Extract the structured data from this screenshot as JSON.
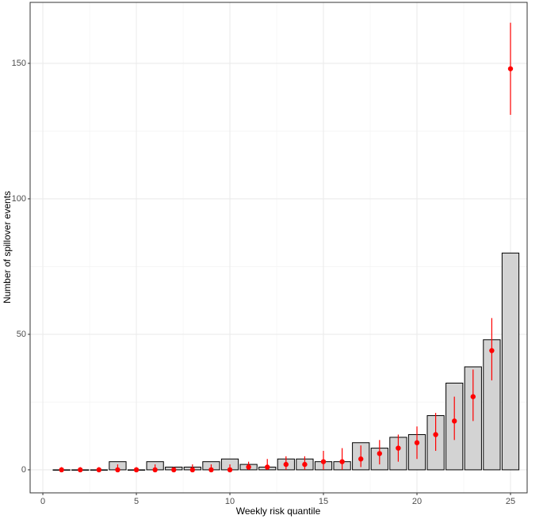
{
  "chart_data": {
    "type": "bar",
    "x_label": "Weekly risk quantile",
    "y_label": "Number of spillover events",
    "x": [
      1,
      2,
      3,
      4,
      5,
      6,
      7,
      8,
      9,
      10,
      11,
      12,
      13,
      14,
      15,
      16,
      17,
      18,
      19,
      20,
      21,
      22,
      23,
      24,
      25
    ],
    "bars": {
      "color": "#d3d3d3",
      "values": [
        0,
        0,
        0,
        3,
        0,
        3,
        1,
        1,
        3,
        4,
        2,
        1,
        4,
        4,
        3,
        3,
        10,
        8,
        12,
        13,
        20,
        32,
        38,
        48,
        80
      ]
    },
    "points": {
      "color": "#ff0000",
      "values": [
        0,
        0,
        0,
        0,
        0,
        0,
        0,
        0,
        0,
        0,
        1,
        1,
        2,
        2,
        3,
        3,
        4,
        6,
        8,
        10,
        13,
        18,
        27,
        44,
        148
      ],
      "lower": [
        0,
        0,
        0,
        0,
        0,
        0,
        0,
        0,
        0,
        0,
        0,
        0,
        0,
        0,
        0,
        0,
        1,
        2,
        3,
        4,
        7,
        11,
        18,
        33,
        131
      ],
      "upper": [
        1,
        1,
        1,
        2,
        1,
        2,
        1,
        2,
        2,
        2,
        3,
        4,
        5,
        5,
        7,
        8,
        9,
        11,
        13,
        16,
        21,
        27,
        37,
        56,
        165
      ]
    },
    "xlim": [
      -0.68,
      25.89
    ],
    "xticks": [
      0,
      5,
      10,
      15,
      20,
      25
    ],
    "ylim": [
      -8.5,
      172.5
    ],
    "yticks": [
      0,
      50,
      100,
      150
    ],
    "grid": true
  }
}
